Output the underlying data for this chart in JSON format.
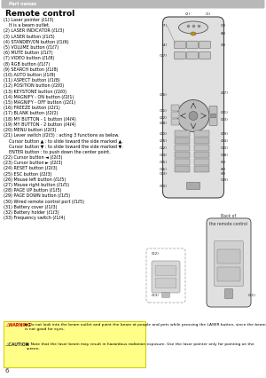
{
  "title": "Remote control",
  "header_text": "Part names",
  "header_bg": "#b8b8b8",
  "bg_color": "#ffffff",
  "text_color": "#000000",
  "left_items": [
    "(1) Laser pointer (ℓ1ℓ3)",
    "    It is a beam outlet.",
    "(2) LASER INDICATOR (ℓ1ℓ3)",
    "(3) LASER button (ℓ1ℓ3)",
    "(4) STANDBY/ON button (ℓ1ℓ6)",
    "(5) VOLUME button (ℓ1ℓ7)",
    "(6) MUTE button (ℓ1ℓ7)",
    "(7) VIDEO button (ℓ1ℓ8)",
    "(8) RGB button (ℓ1ℓ7)",
    "(9) SEARCH button (ℓ1ℓ8)",
    "(10) AUTO button (ℓ1ℓ9)",
    "(11) ASPECT button (ℓ1ℓ8)",
    "(12) POSITION button (ℓ2ℓ0)",
    "(13) KEYSTONE button (ℓ2ℓ0)",
    "(14) MAGNIFY - ON button (ℓ2ℓ1)",
    "(15) MAGNIFY - OFF button (ℓ2ℓ1)",
    "(16) FREEZE button (ℓ2ℓ1)",
    "(17) BLANK button (ℓ2ℓ2)",
    "(18) MY BUTTON - 1 button (ℓ4ℓ4)",
    "(19) MY BUTTON - 2 button (ℓ4ℓ4)",
    "(20) MENU button (ℓ2ℓ3)",
    "(21) Lever switch (ℓ2ℓ3) : acting 3 functions as below.",
    "    Cursor button ▲ : to slide toward the side marked ▲.",
    "    Cursor button ▼ : to slide toward the side marked ▼.",
    "    ENTER button : to push down the center point.",
    "(22) Cursor button ◄ (ℓ2ℓ3)",
    "(23) Cursor button ► (ℓ2ℓ3)",
    "(24) RESET button (ℓ2ℓ3)",
    "(25) ESC button (ℓ2ℓ3)",
    "(26) Mouse left button (ℓ1ℓ5)",
    "(27) Mouse right button (ℓ1ℓ5)",
    "(28) PAGE UP button (ℓ1ℓ5)",
    "(29) PAGE DOWN button (ℓ1ℓ5)",
    "(30) Wired remote control port (ℓ1ℓ5)",
    "(31) Battery cover (ℓ1ℓ3)",
    "(32) Battery holder (ℓ1ℓ3)",
    "(33) Frequency switch (ℓ1ℓ4)"
  ],
  "warning_bg": "#ffff88",
  "warning_text": "Do not look into the beam outlet and point the beam at people and pets while pressing the LASER button, since the beam is not good for eyes.",
  "caution_text": "Note that the laser beam may result in hazardous radiation exposure. Use the laser pointer only for pointing on the screen.",
  "page_number": "6",
  "font_size_title": 6.5,
  "font_size_body": 3.5,
  "font_size_warning": 3.4,
  "label_fs": 3.2
}
